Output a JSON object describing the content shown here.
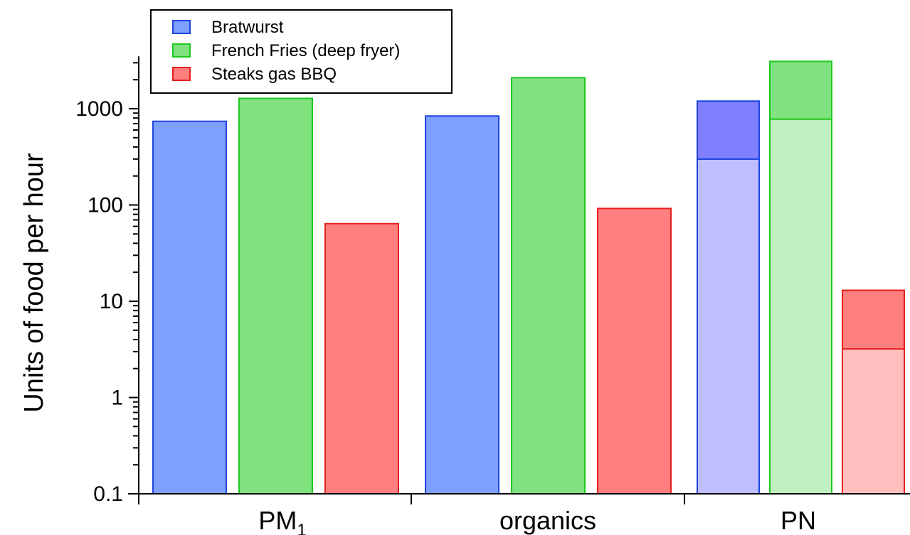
{
  "chart_data": {
    "type": "bar",
    "title": "",
    "xlabel": "",
    "ylabel": "Units of food per hour",
    "yscale": "log",
    "ylim": [
      0.1,
      3500
    ],
    "yticks": [
      "0.1",
      "1",
      "10",
      "100",
      "1000"
    ],
    "grid": false,
    "legend_position": "top-left",
    "categories": [
      {
        "label": "PM",
        "subscript": "1"
      },
      {
        "label": "organics",
        "subscript": ""
      },
      {
        "label": "PN",
        "subscript": ""
      }
    ],
    "series": [
      {
        "name": "Bratwurst",
        "fill": "#7f9fff",
        "stroke": "#1f44dd",
        "values": [
          740,
          840,
          1200
        ],
        "lower_values": [
          null,
          null,
          300
        ],
        "pn_upper_fill": "#7f7fff",
        "pn_lower_fill": "#bfbfff"
      },
      {
        "name": "French Fries (deep fryer)",
        "fill": "#7fe27f",
        "stroke": "#1fc81f",
        "values": [
          1280,
          2100,
          3100
        ],
        "lower_values": [
          null,
          null,
          780
        ],
        "pn_upper_fill": "#7fe27f",
        "pn_lower_fill": "#c0f0c0"
      },
      {
        "name": "Steaks gas BBQ",
        "fill": "#ff7f7f",
        "stroke": "#e51f1f",
        "values": [
          64,
          92,
          13
        ],
        "lower_values": [
          null,
          null,
          3.2
        ],
        "pn_upper_fill": "#ff7f7f",
        "pn_lower_fill": "#ffbfbf"
      }
    ]
  }
}
